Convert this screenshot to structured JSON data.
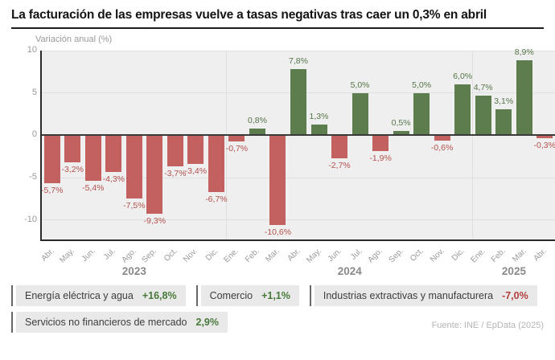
{
  "title": "La facturación de las empresas vuelve a tasas negativas tras caer un 0,3% en abril",
  "chart_data": {
    "type": "bar",
    "axis_title": "Variación anual (%)",
    "unit": "%",
    "categories": [
      "Abr.",
      "May.",
      "Jun.",
      "Jul.",
      "Ago.",
      "Sep.",
      "Oct.",
      "Nov.",
      "Dic.",
      "Ene.",
      "Feb.",
      "Mar.",
      "Abr.",
      "May.",
      "Jun.",
      "Jul.",
      "Ago.",
      "Sep.",
      "Oct.",
      "Nov.",
      "Dic.",
      "Ene.",
      "Feb.",
      "Mar.",
      "Abr."
    ],
    "values": [
      -5.7,
      -3.2,
      -5.4,
      -4.3,
      -7.5,
      -9.3,
      -3.7,
      -3.4,
      -6.7,
      -0.7,
      0.8,
      -10.6,
      7.8,
      1.3,
      -2.7,
      5.0,
      -1.9,
      0.5,
      5.0,
      -0.6,
      6.0,
      4.7,
      3.1,
      8.9,
      -0.3
    ],
    "labels": [
      "-5,7%",
      "-3,2%",
      "-5,4%",
      "-4,3%",
      "-7,5%",
      "-9,3%",
      "-3,7%",
      "-3,4%",
      "-6,7%",
      "-0,7%",
      "0,8%",
      "-10,6%",
      "7,8%",
      "1,3%",
      "-2,7%",
      "5,0%",
      "-1,9%",
      "0,5%",
      "5,0%",
      "-0,6%",
      "6,0%",
      "4,7%",
      "3,1%",
      "8,9%",
      "-0,3%"
    ],
    "yticks": [
      10,
      5,
      0,
      -5,
      -10
    ],
    "ylim": [
      -12.3,
      10
    ],
    "year_groups": [
      {
        "label": "2023",
        "from": 0,
        "to": 8
      },
      {
        "label": "2024",
        "from": 9,
        "to": 20
      },
      {
        "label": "2025",
        "from": 21,
        "to": 24
      }
    ],
    "grid": true,
    "legend_position": "bottom",
    "positive_color": "#5e7d4e",
    "negative_color": "#c2615f",
    "positive_label_color": "#567548",
    "negative_label_color": "#b5514d"
  },
  "legend": {
    "items": [
      {
        "label": "Energía eléctrica y agua",
        "value": "+16,8%",
        "color": "#47793a"
      },
      {
        "label": "Comercio",
        "value": "+1,1%",
        "color": "#47793a"
      },
      {
        "label": "Industrias extractivas y manufacturera",
        "value": "-7,0%",
        "color": "#b23e3c"
      },
      {
        "label": "Servicios no financieros de mercado",
        "value": "2,9%",
        "color": "#47793a"
      }
    ]
  },
  "source": "Fuente: INE / EpData (2025)"
}
